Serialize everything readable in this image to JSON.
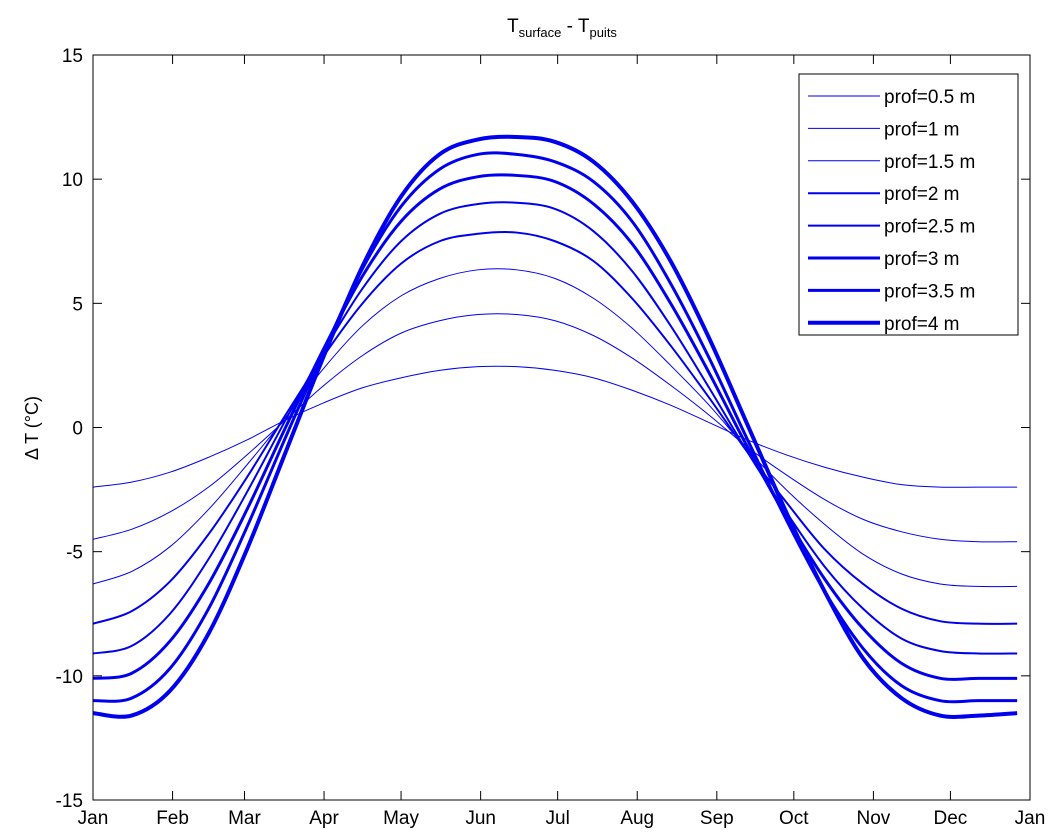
{
  "chart_data": {
    "type": "line",
    "title": {
      "main": "T",
      "sub1": "surface",
      "sep": " - T",
      "sub2": "puits"
    },
    "xlabel": "",
    "ylabel": "Δ T (°C)",
    "xlim": [
      0,
      365
    ],
    "ylim": [
      -15,
      15
    ],
    "yticks": [
      -15,
      -10,
      -5,
      0,
      5,
      10,
      15
    ],
    "ytick_labels": [
      "-15",
      "-10",
      "-5",
      "0",
      "5",
      "10",
      "15"
    ],
    "xticks": [
      0,
      31,
      59,
      90,
      120,
      151,
      181,
      212,
      243,
      273,
      304,
      334,
      365
    ],
    "xtick_labels": [
      "Jan",
      "Feb",
      "Mar",
      "Apr",
      "May",
      "Jun",
      "Jul",
      "Aug",
      "Sep",
      "Oct",
      "Nov",
      "Dec",
      "Jan"
    ],
    "grid": false,
    "legend_position": "top-right",
    "line_color": "#0000ee",
    "x": [
      0,
      15,
      30,
      45,
      60,
      75,
      90,
      105,
      120,
      135,
      150,
      165,
      180,
      195,
      210,
      225,
      240,
      255,
      270,
      285,
      300,
      315,
      330,
      345,
      360
    ],
    "series": [
      {
        "name": "prof=0.5 m",
        "width": 1.0,
        "values": [
          -2.4,
          -2.2,
          -1.8,
          -1.2,
          -0.5,
          0.3,
          1.0,
          1.6,
          2.0,
          2.3,
          2.45,
          2.45,
          2.3,
          2.0,
          1.5,
          0.9,
          0.2,
          -0.5,
          -1.1,
          -1.6,
          -2.0,
          -2.3,
          -2.4,
          -2.4,
          -2.4
        ]
      },
      {
        "name": "prof=1 m",
        "width": 1.0,
        "values": [
          -4.5,
          -4.1,
          -3.4,
          -2.4,
          -1.1,
          0.3,
          1.7,
          2.9,
          3.8,
          4.3,
          4.55,
          4.55,
          4.3,
          3.7,
          2.8,
          1.7,
          0.5,
          -0.8,
          -1.9,
          -2.9,
          -3.7,
          -4.2,
          -4.5,
          -4.6,
          -4.6
        ]
      },
      {
        "name": "prof=1.5 m",
        "width": 1.0,
        "values": [
          -6.3,
          -5.8,
          -4.8,
          -3.3,
          -1.5,
          0.4,
          2.4,
          4.1,
          5.3,
          6.0,
          6.35,
          6.35,
          6.0,
          5.2,
          4.0,
          2.5,
          0.9,
          -0.9,
          -2.5,
          -3.9,
          -5.1,
          -5.9,
          -6.3,
          -6.4,
          -6.4
        ]
      },
      {
        "name": "prof=2 m",
        "width": 2.0,
        "values": [
          -7.9,
          -7.4,
          -6.2,
          -4.3,
          -2.0,
          0.5,
          2.9,
          5.0,
          6.6,
          7.5,
          7.8,
          7.85,
          7.5,
          6.7,
          5.2,
          3.3,
          1.2,
          -1.0,
          -3.0,
          -4.9,
          -6.3,
          -7.3,
          -7.8,
          -7.9,
          -7.9
        ]
      },
      {
        "name": "prof=2.5 m",
        "width": 2.0,
        "values": [
          -9.1,
          -8.8,
          -7.5,
          -5.3,
          -2.6,
          0.3,
          3.1,
          5.6,
          7.5,
          8.6,
          9.0,
          9.05,
          8.8,
          7.9,
          6.3,
          4.1,
          1.6,
          -1.0,
          -3.4,
          -5.6,
          -7.3,
          -8.5,
          -9.0,
          -9.1,
          -9.1
        ]
      },
      {
        "name": "prof=3 m",
        "width": 3.0,
        "values": [
          -10.1,
          -9.9,
          -8.6,
          -6.3,
          -3.3,
          0.0,
          3.2,
          6.1,
          8.3,
          9.6,
          10.1,
          10.15,
          9.9,
          9.0,
          7.4,
          5.0,
          2.2,
          -0.8,
          -3.6,
          -6.1,
          -8.1,
          -9.5,
          -10.1,
          -10.1,
          -10.1
        ]
      },
      {
        "name": "prof=3.5 m",
        "width": 3.0,
        "values": [
          -11.0,
          -10.9,
          -9.7,
          -7.3,
          -4.0,
          -0.4,
          3.1,
          6.4,
          8.9,
          10.4,
          11.0,
          11.0,
          10.7,
          9.9,
          8.3,
          5.8,
          2.8,
          -0.5,
          -3.7,
          -6.6,
          -8.9,
          -10.4,
          -11.0,
          -11.0,
          -11.0
        ]
      },
      {
        "name": "prof=4 m",
        "width": 4.0,
        "values": [
          -11.5,
          -11.6,
          -10.6,
          -8.3,
          -4.9,
          -1.0,
          2.9,
          6.5,
          9.3,
          11.0,
          11.6,
          11.7,
          11.5,
          10.7,
          9.1,
          6.7,
          3.6,
          0.1,
          -3.4,
          -6.6,
          -9.3,
          -10.9,
          -11.6,
          -11.6,
          -11.5
        ]
      }
    ]
  }
}
